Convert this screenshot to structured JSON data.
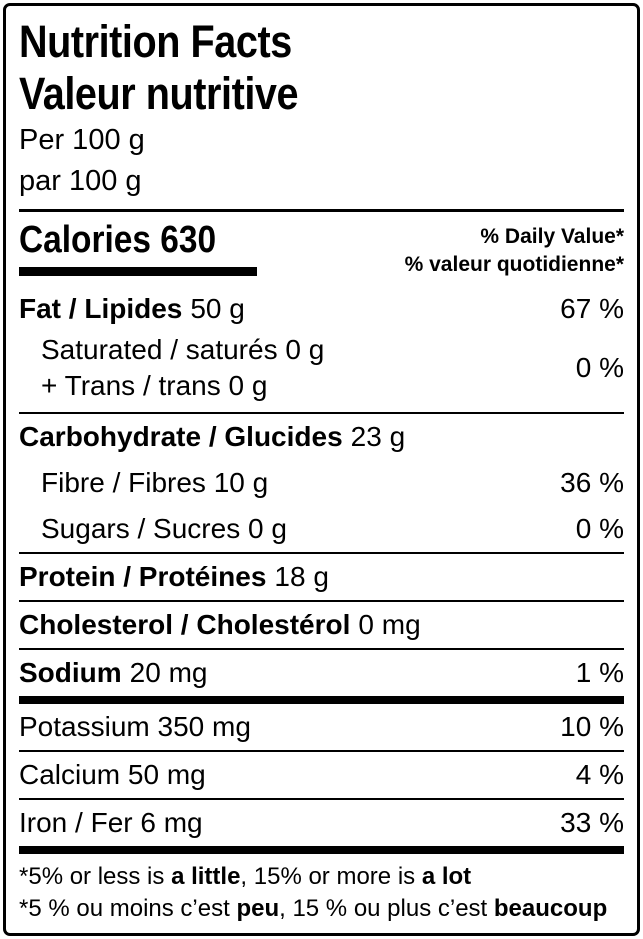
{
  "colors": {
    "text": "#000000",
    "background": "#ffffff",
    "rule": "#000000"
  },
  "label": {
    "title_en": "Nutrition Facts",
    "title_fr": "Valeur nutritive",
    "serving_en": "Per 100 g",
    "serving_fr": "par 100 g",
    "calories": {
      "label": "Calories",
      "value": "630"
    },
    "daily_value_en": "% Daily Value*",
    "daily_value_fr": "% valeur quotidienne*",
    "rows": {
      "fat": {
        "name": "Fat / Lipides",
        "amount": "50 g",
        "pct": "67 %"
      },
      "saturated_trans": {
        "line1": "Saturated / saturés 0 g",
        "line2": "+ Trans / trans 0 g",
        "pct": "0 %"
      },
      "carbohydrate": {
        "name": "Carbohydrate / Glucides",
        "amount": "23 g"
      },
      "fibre": {
        "name": "Fibre / Fibres 10 g",
        "pct": "36 %"
      },
      "sugars": {
        "name": "Sugars / Sucres 0 g",
        "pct": "0 %"
      },
      "protein": {
        "name": "Protein / Protéines",
        "amount": "18 g"
      },
      "cholesterol": {
        "name": "Cholesterol / Cholestérol",
        "amount": "0 mg"
      },
      "sodium": {
        "name": "Sodium",
        "amount": "20 mg",
        "pct": "1 %"
      },
      "potassium": {
        "name": "Potassium 350 mg",
        "pct": "10 %"
      },
      "calcium": {
        "name": "Calcium 50 mg",
        "pct": "4 %"
      },
      "iron": {
        "name": "Iron / Fer 6 mg",
        "pct": "33 %"
      }
    },
    "footnote_en": {
      "pre": "*5% or less is ",
      "term1": "a little",
      "mid": ", 15% or more is ",
      "term2": "a lot"
    },
    "footnote_fr": {
      "pre": "*5 % ou moins c’est ",
      "term1": "peu",
      "mid": ", 15 % ou plus c’est ",
      "term2": "beaucoup"
    }
  }
}
